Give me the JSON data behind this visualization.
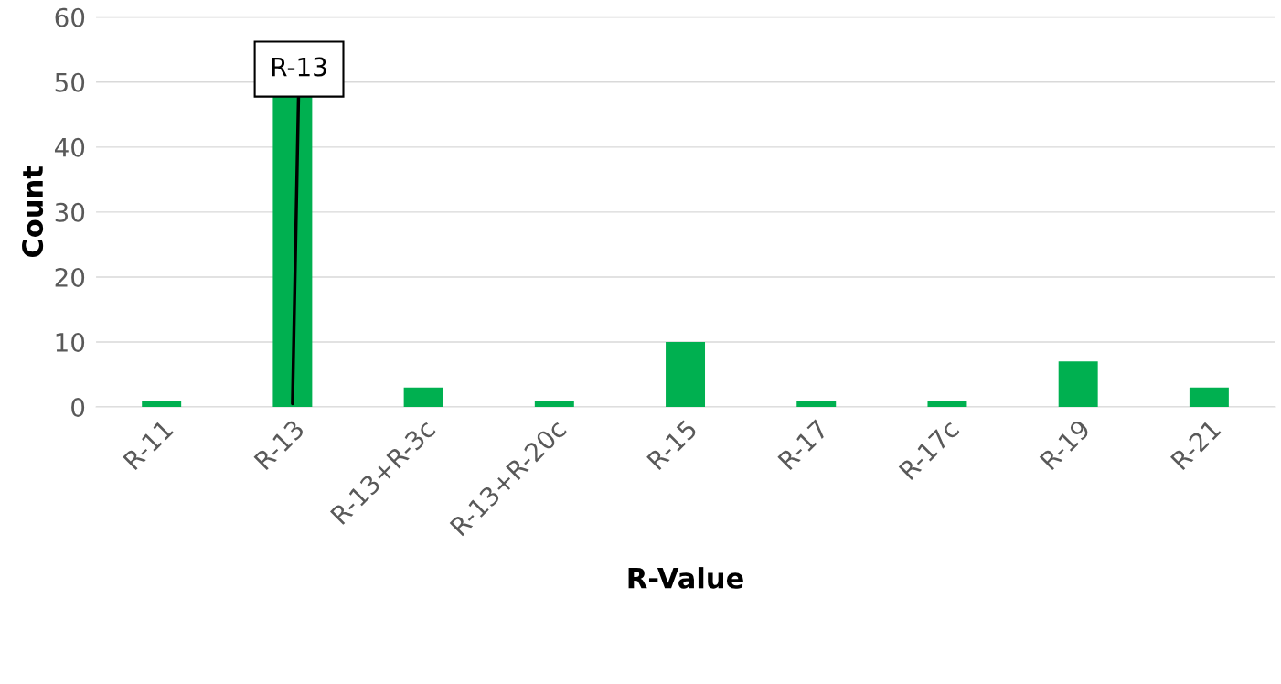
{
  "chart_data": {
    "type": "bar",
    "xlabel": "R-Value",
    "ylabel": "Count",
    "categories": [
      "R-11",
      "R-13",
      "R-13+R-3c",
      "R-13+R-20c",
      "R-15",
      "R-17",
      "R-17c",
      "R-19",
      "R-21"
    ],
    "values": [
      1,
      48,
      3,
      1,
      10,
      1,
      1,
      7,
      3
    ],
    "color": "#00b050",
    "ylim": [
      0,
      60
    ],
    "yticks": [
      0,
      10,
      20,
      30,
      40,
      50,
      60
    ],
    "grid": "y",
    "annotations": [
      {
        "text": "R-13",
        "x": "R-13",
        "y": 48
      }
    ]
  }
}
